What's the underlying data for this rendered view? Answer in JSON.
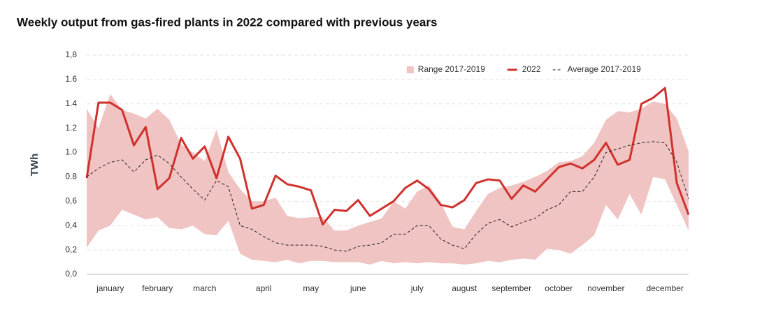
{
  "chart_data": {
    "type": "line",
    "title": "Weekly output from gas-fired plants in 2022 compared with previous years",
    "y_label": "TWh",
    "categories": [
      null,
      null,
      "january",
      null,
      null,
      null,
      "february",
      null,
      null,
      null,
      "march",
      null,
      null,
      null,
      null,
      "april",
      null,
      null,
      null,
      "may",
      null,
      null,
      null,
      "june",
      null,
      null,
      null,
      null,
      "july",
      null,
      null,
      null,
      "august",
      null,
      null,
      null,
      "september",
      null,
      null,
      null,
      "october",
      null,
      null,
      null,
      "november",
      null,
      null,
      null,
      null,
      "december",
      null,
      null
    ],
    "ylim": [
      0,
      1.8
    ],
    "yticks": [
      {
        "value": 0,
        "label": "0,0"
      },
      {
        "value": 0.2,
        "label": "0,2"
      },
      {
        "value": 0.4,
        "label": "0,4"
      },
      {
        "value": 0.6,
        "label": "0,6"
      },
      0.8,
      {
        "value": 1,
        "label": "1.0"
      },
      1.2,
      1.4,
      1.6,
      {
        "value": 1.8,
        "label": "1,8"
      }
    ],
    "grid": true,
    "legend": "top-right",
    "series": [
      {
        "name": "Range 2017-2019",
        "type": "range",
        "color": "#f0c4c2",
        "high": [
          1.36,
          1.2,
          1.48,
          1.35,
          1.32,
          1.28,
          1.36,
          1.27,
          1.07,
          1.0,
          0.93,
          1.19,
          0.84,
          0.7,
          0.6,
          0.6,
          0.63,
          0.48,
          0.46,
          0.47,
          0.47,
          0.36,
          0.36,
          0.4,
          0.43,
          0.46,
          0.6,
          0.54,
          0.68,
          0.73,
          0.59,
          0.39,
          0.37,
          0.52,
          0.66,
          0.71,
          0.73,
          0.76,
          0.8,
          0.85,
          0.92,
          0.93,
          0.97,
          1.08,
          1.27,
          1.34,
          1.33,
          1.36,
          1.42,
          1.4,
          1.28,
          1.01
        ],
        "low": [
          0.22,
          0.36,
          0.4,
          0.53,
          0.49,
          0.45,
          0.47,
          0.38,
          0.37,
          0.4,
          0.33,
          0.32,
          0.44,
          0.17,
          0.12,
          0.11,
          0.1,
          0.12,
          0.09,
          0.11,
          0.11,
          0.1,
          0.1,
          0.1,
          0.08,
          0.11,
          0.09,
          0.1,
          0.09,
          0.1,
          0.09,
          0.09,
          0.08,
          0.09,
          0.11,
          0.1,
          0.12,
          0.13,
          0.12,
          0.21,
          0.2,
          0.17,
          0.24,
          0.32,
          0.57,
          0.45,
          0.66,
          0.49,
          0.8,
          0.78,
          0.57,
          0.36
        ]
      },
      {
        "name": "2022",
        "type": "line",
        "color": "#d0312d",
        "dash": false,
        "values": [
          0.79,
          1.41,
          1.41,
          1.35,
          1.06,
          1.21,
          0.7,
          0.79,
          1.12,
          0.95,
          1.05,
          0.79,
          1.13,
          0.95,
          0.54,
          0.57,
          0.81,
          0.74,
          0.72,
          0.69,
          0.41,
          0.53,
          0.52,
          0.61,
          0.48,
          0.54,
          0.6,
          0.71,
          0.77,
          0.7,
          0.57,
          0.55,
          0.61,
          0.75,
          0.78,
          0.77,
          0.62,
          0.73,
          0.68,
          0.78,
          0.88,
          0.91,
          0.87,
          0.94,
          1.08,
          0.9,
          0.94,
          1.4,
          1.45,
          1.53,
          0.75,
          0.49
        ]
      },
      {
        "name": "Average 2017-2019",
        "type": "line",
        "color": "#222222",
        "dash": true,
        "values": [
          0.8,
          0.87,
          0.92,
          0.94,
          0.84,
          0.94,
          0.98,
          0.91,
          0.8,
          0.7,
          0.61,
          0.77,
          0.72,
          0.4,
          0.37,
          0.31,
          0.26,
          0.24,
          0.24,
          0.24,
          0.23,
          0.2,
          0.19,
          0.23,
          0.24,
          0.26,
          0.33,
          0.33,
          0.4,
          0.4,
          0.29,
          0.24,
          0.21,
          0.33,
          0.42,
          0.45,
          0.39,
          0.43,
          0.46,
          0.53,
          0.57,
          0.68,
          0.68,
          0.8,
          1.0,
          1.03,
          1.06,
          1.08,
          1.09,
          1.08,
          0.92,
          0.62
        ]
      }
    ]
  }
}
